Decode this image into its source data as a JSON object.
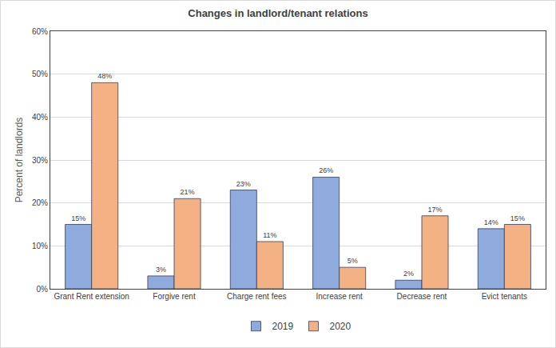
{
  "chart_data": {
    "type": "bar",
    "title": "Changes in landlord/tenant relations",
    "y_label": "Percent of landlords",
    "categories": [
      "Grant Rent extension",
      "Forgive rent",
      "Charge rent fees",
      "Increase rent",
      "Decrease rent",
      "Evict tenants"
    ],
    "series": [
      {
        "name": "2019",
        "color": "#8faadc",
        "values": [
          15,
          3,
          23,
          26,
          2,
          14
        ],
        "value_labels": [
          "15%",
          "3%",
          "23%",
          "26%",
          "2%",
          "14%"
        ]
      },
      {
        "name": "2020",
        "color": "#f4b183",
        "values": [
          48,
          21,
          11,
          5,
          17,
          15
        ],
        "value_labels": [
          "48%",
          "21%",
          "11%",
          "5%",
          "17%",
          "15%"
        ]
      }
    ],
    "ylim": [
      0,
      60
    ],
    "yticks": [
      {
        "value": 0,
        "label": "0%"
      },
      {
        "value": 10,
        "label": "10%"
      },
      {
        "value": 20,
        "label": "20%"
      },
      {
        "value": 30,
        "label": "30%"
      },
      {
        "value": 40,
        "label": "40%"
      },
      {
        "value": 50,
        "label": "50%"
      },
      {
        "value": 60,
        "label": "60%"
      }
    ],
    "grid": true,
    "legend": "bottom",
    "data_labels": true
  }
}
